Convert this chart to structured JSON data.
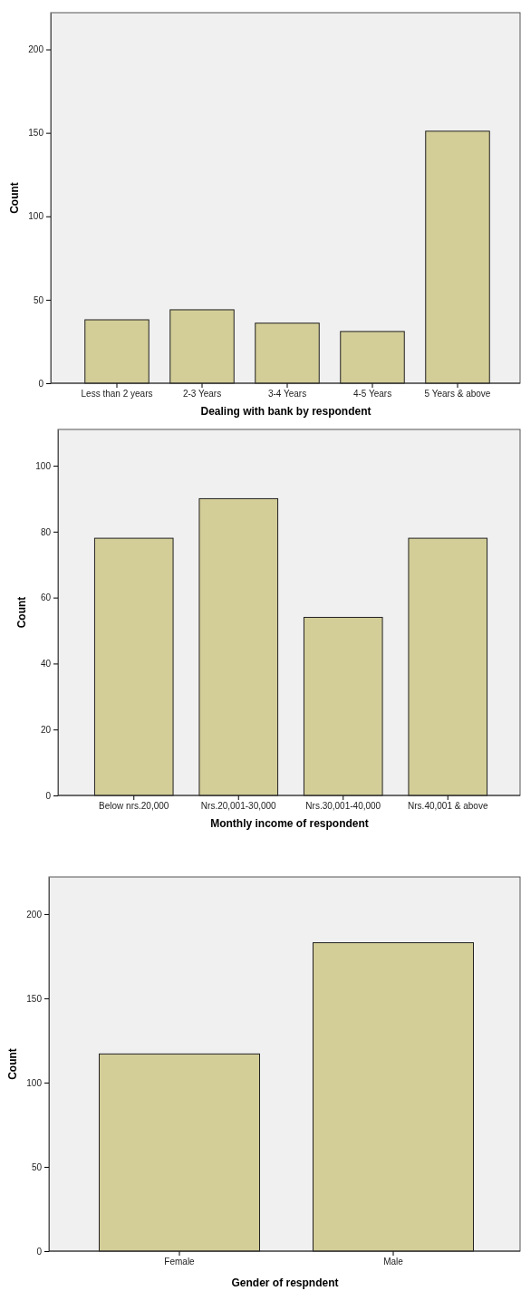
{
  "chart_data": [
    {
      "type": "bar",
      "xlabel": "Dealing with bank by respondent",
      "ylabel": "Count",
      "categories": [
        "Less than 2 years",
        "2-3 Years",
        "3-4 Years",
        "4-5 Years",
        "5 Years & above"
      ],
      "values": [
        38,
        44,
        36,
        31,
        151
      ],
      "color": "#d3cd98",
      "ylim": [
        0,
        222
      ],
      "yticks": [
        0,
        50,
        100,
        150,
        200
      ],
      "grid": false
    },
    {
      "type": "bar",
      "xlabel": "Monthly income of respondent",
      "ylabel": "Count",
      "categories": [
        "Below nrs.20,000",
        "Nrs.20,001-30,000",
        "Nrs.30,001-40,000",
        "Nrs.40,001 & above"
      ],
      "values": [
        78,
        90,
        54,
        78
      ],
      "color": "#d3cd98",
      "ylim": [
        0,
        111
      ],
      "yticks": [
        0,
        20,
        40,
        60,
        80,
        100
      ],
      "grid": false
    },
    {
      "type": "bar",
      "xlabel": "Gender of respndent",
      "ylabel": "Count",
      "categories": [
        "Female",
        "Male"
      ],
      "values": [
        117,
        183
      ],
      "color": "#d3cd98",
      "ylim": [
        0,
        222
      ],
      "yticks": [
        0,
        50,
        100,
        150,
        200
      ],
      "grid": false
    }
  ]
}
